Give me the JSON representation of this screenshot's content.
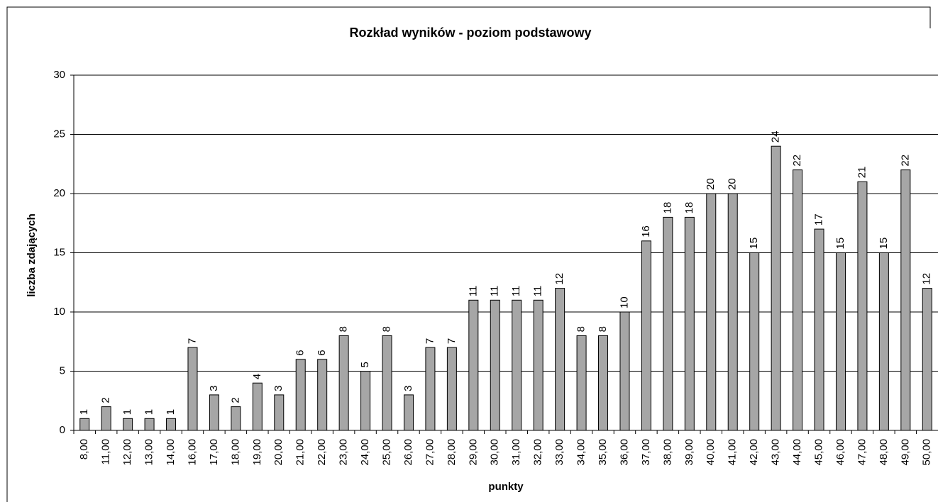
{
  "chart_data": {
    "type": "bar",
    "title": "Rozkład wyników - poziom podstawowy",
    "x_label": "punkty",
    "y_label": "liczba zdających",
    "categories": [
      "8,00",
      "11,00",
      "12,00",
      "13,00",
      "14,00",
      "16,00",
      "17,00",
      "18,00",
      "19,00",
      "20,00",
      "21,00",
      "22,00",
      "23,00",
      "24,00",
      "25,00",
      "26,00",
      "27,00",
      "28,00",
      "29,00",
      "30,00",
      "31,00",
      "32,00",
      "33,00",
      "34,00",
      "35,00",
      "36,00",
      "37,00",
      "38,00",
      "39,00",
      "40,00",
      "41,00",
      "42,00",
      "43,00",
      "44,00",
      "45,00",
      "46,00",
      "47,00",
      "48,00",
      "49,00",
      "50,00"
    ],
    "values": [
      1,
      2,
      1,
      1,
      1,
      7,
      3,
      2,
      4,
      3,
      6,
      6,
      8,
      5,
      8,
      3,
      7,
      7,
      11,
      11,
      11,
      11,
      12,
      8,
      8,
      10,
      16,
      18,
      18,
      20,
      20,
      15,
      24,
      22,
      17,
      15,
      21,
      15,
      22,
      12
    ],
    "color": "#a6a6a6",
    "ylim": [
      0,
      30
    ],
    "yticks": [
      0,
      5,
      10,
      15,
      20,
      25,
      30
    ],
    "grid": true
  }
}
